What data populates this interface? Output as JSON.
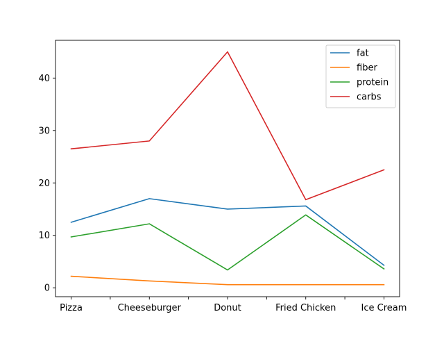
{
  "chart_data": {
    "type": "line",
    "title": "",
    "xlabel": "",
    "ylabel": "",
    "categories": [
      "Pizza",
      "Cheeseburger",
      "Donut",
      "Fried Chicken",
      "Ice Cream"
    ],
    "x_ticks": [
      0,
      0.5,
      1,
      1.5,
      2,
      2.5,
      3,
      3.5,
      4
    ],
    "x_labeled_ticks": [
      0,
      1,
      2,
      3,
      4
    ],
    "xlim": [
      -0.2,
      4.2
    ],
    "ylim": [
      -1.7,
      47.2
    ],
    "y_ticks": [
      0,
      10,
      20,
      30,
      40
    ],
    "y_tick_labels": [
      "0",
      "10",
      "20",
      "30",
      "40"
    ],
    "grid": false,
    "legend_position": "top-right",
    "series": [
      {
        "name": "fat",
        "color": "#1f77b4",
        "values": [
          12.5,
          17.0,
          15.0,
          15.6,
          4.3
        ]
      },
      {
        "name": "fiber",
        "color": "#ff7f0e",
        "values": [
          2.2,
          1.3,
          0.6,
          0.6,
          0.6
        ]
      },
      {
        "name": "protein",
        "color": "#2ca02c",
        "values": [
          9.7,
          12.2,
          3.4,
          13.9,
          3.6
        ]
      },
      {
        "name": "carbs",
        "color": "#d62728",
        "values": [
          26.5,
          28.0,
          45.0,
          16.8,
          22.5
        ]
      }
    ]
  }
}
